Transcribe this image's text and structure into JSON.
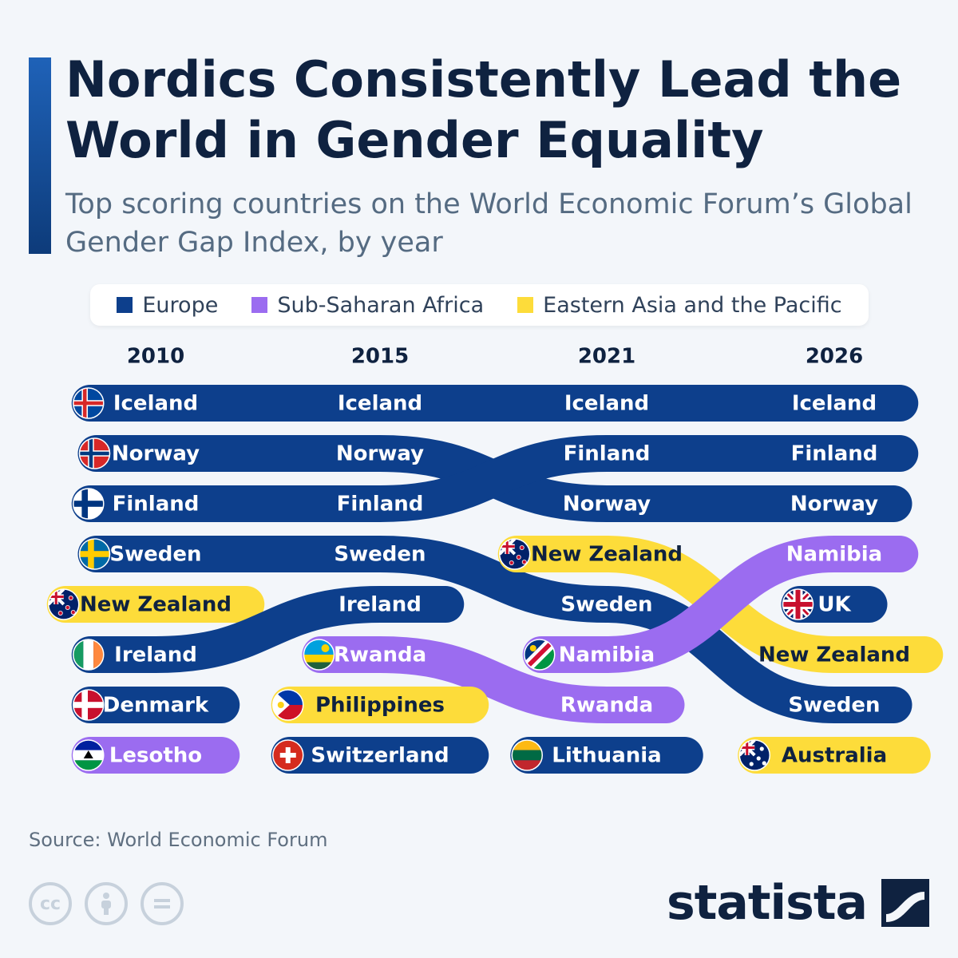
{
  "title": "Nordics Consistently Lead the World in Gender Equality",
  "subtitle": "Top scoring countries on the World Economic Forum’s Global Gender Gap Index, by year",
  "source": "Source: World Economic Forum",
  "brand": "statista",
  "colors": {
    "Europe": "#0d3f8c",
    "Sub-Saharan Africa": "#9b6cf0",
    "Eastern Asia and the Pacific": "#fddc3a"
  },
  "legend": [
    {
      "label": "Europe",
      "color": "#0d3f8c"
    },
    {
      "label": "Sub-Saharan Africa",
      "color": "#9b6cf0"
    },
    {
      "label": "Eastern Asia and the Pacific",
      "color": "#fddc3a"
    }
  ],
  "footer_icons": [
    "cc-icon",
    "attribution-icon",
    "no-derivatives-icon"
  ],
  "chart_data": {
    "type": "table",
    "years": [
      "2010",
      "2015",
      "2021",
      "2026"
    ],
    "rankings": {
      "2010": [
        "Iceland",
        "Norway",
        "Finland",
        "Sweden",
        "New Zealand",
        "Ireland",
        "Denmark",
        "Lesotho"
      ],
      "2015": [
        "Iceland",
        "Norway",
        "Finland",
        "Sweden",
        "Ireland",
        "Rwanda",
        "Philippines",
        "Switzerland"
      ],
      "2021": [
        "Iceland",
        "Finland",
        "Norway",
        "New Zealand",
        "Sweden",
        "Namibia",
        "Rwanda",
        "Lithuania"
      ],
      "2026": [
        "Iceland",
        "Finland",
        "Norway",
        "Namibia",
        "UK",
        "New Zealand",
        "Sweden",
        "Australia"
      ]
    },
    "regions": {
      "Iceland": "Europe",
      "Norway": "Europe",
      "Finland": "Europe",
      "Sweden": "Europe",
      "Ireland": "Europe",
      "Denmark": "Europe",
      "Switzerland": "Europe",
      "Lithuania": "Europe",
      "UK": "Europe",
      "New Zealand": "Eastern Asia and the Pacific",
      "Philippines": "Eastern Asia and the Pacific",
      "Australia": "Eastern Asia and the Pacific",
      "Lesotho": "Sub-Saharan Africa",
      "Rwanda": "Sub-Saharan Africa",
      "Namibia": "Sub-Saharan Africa"
    },
    "flag_icons": {
      "Iceland": "iceland-flag-icon",
      "Norway": "norway-flag-icon",
      "Finland": "finland-flag-icon",
      "Sweden": "sweden-flag-icon",
      "New Zealand": "new-zealand-flag-icon",
      "Ireland": "ireland-flag-icon",
      "Denmark": "denmark-flag-icon",
      "Lesotho": "lesotho-flag-icon",
      "Rwanda": "rwanda-flag-icon",
      "Philippines": "philippines-flag-icon",
      "Switzerland": "switzerland-flag-icon",
      "Namibia": "namibia-flag-icon",
      "Lithuania": "lithuania-flag-icon",
      "UK": "uk-flag-icon",
      "Australia": "australia-flag-icon"
    }
  }
}
